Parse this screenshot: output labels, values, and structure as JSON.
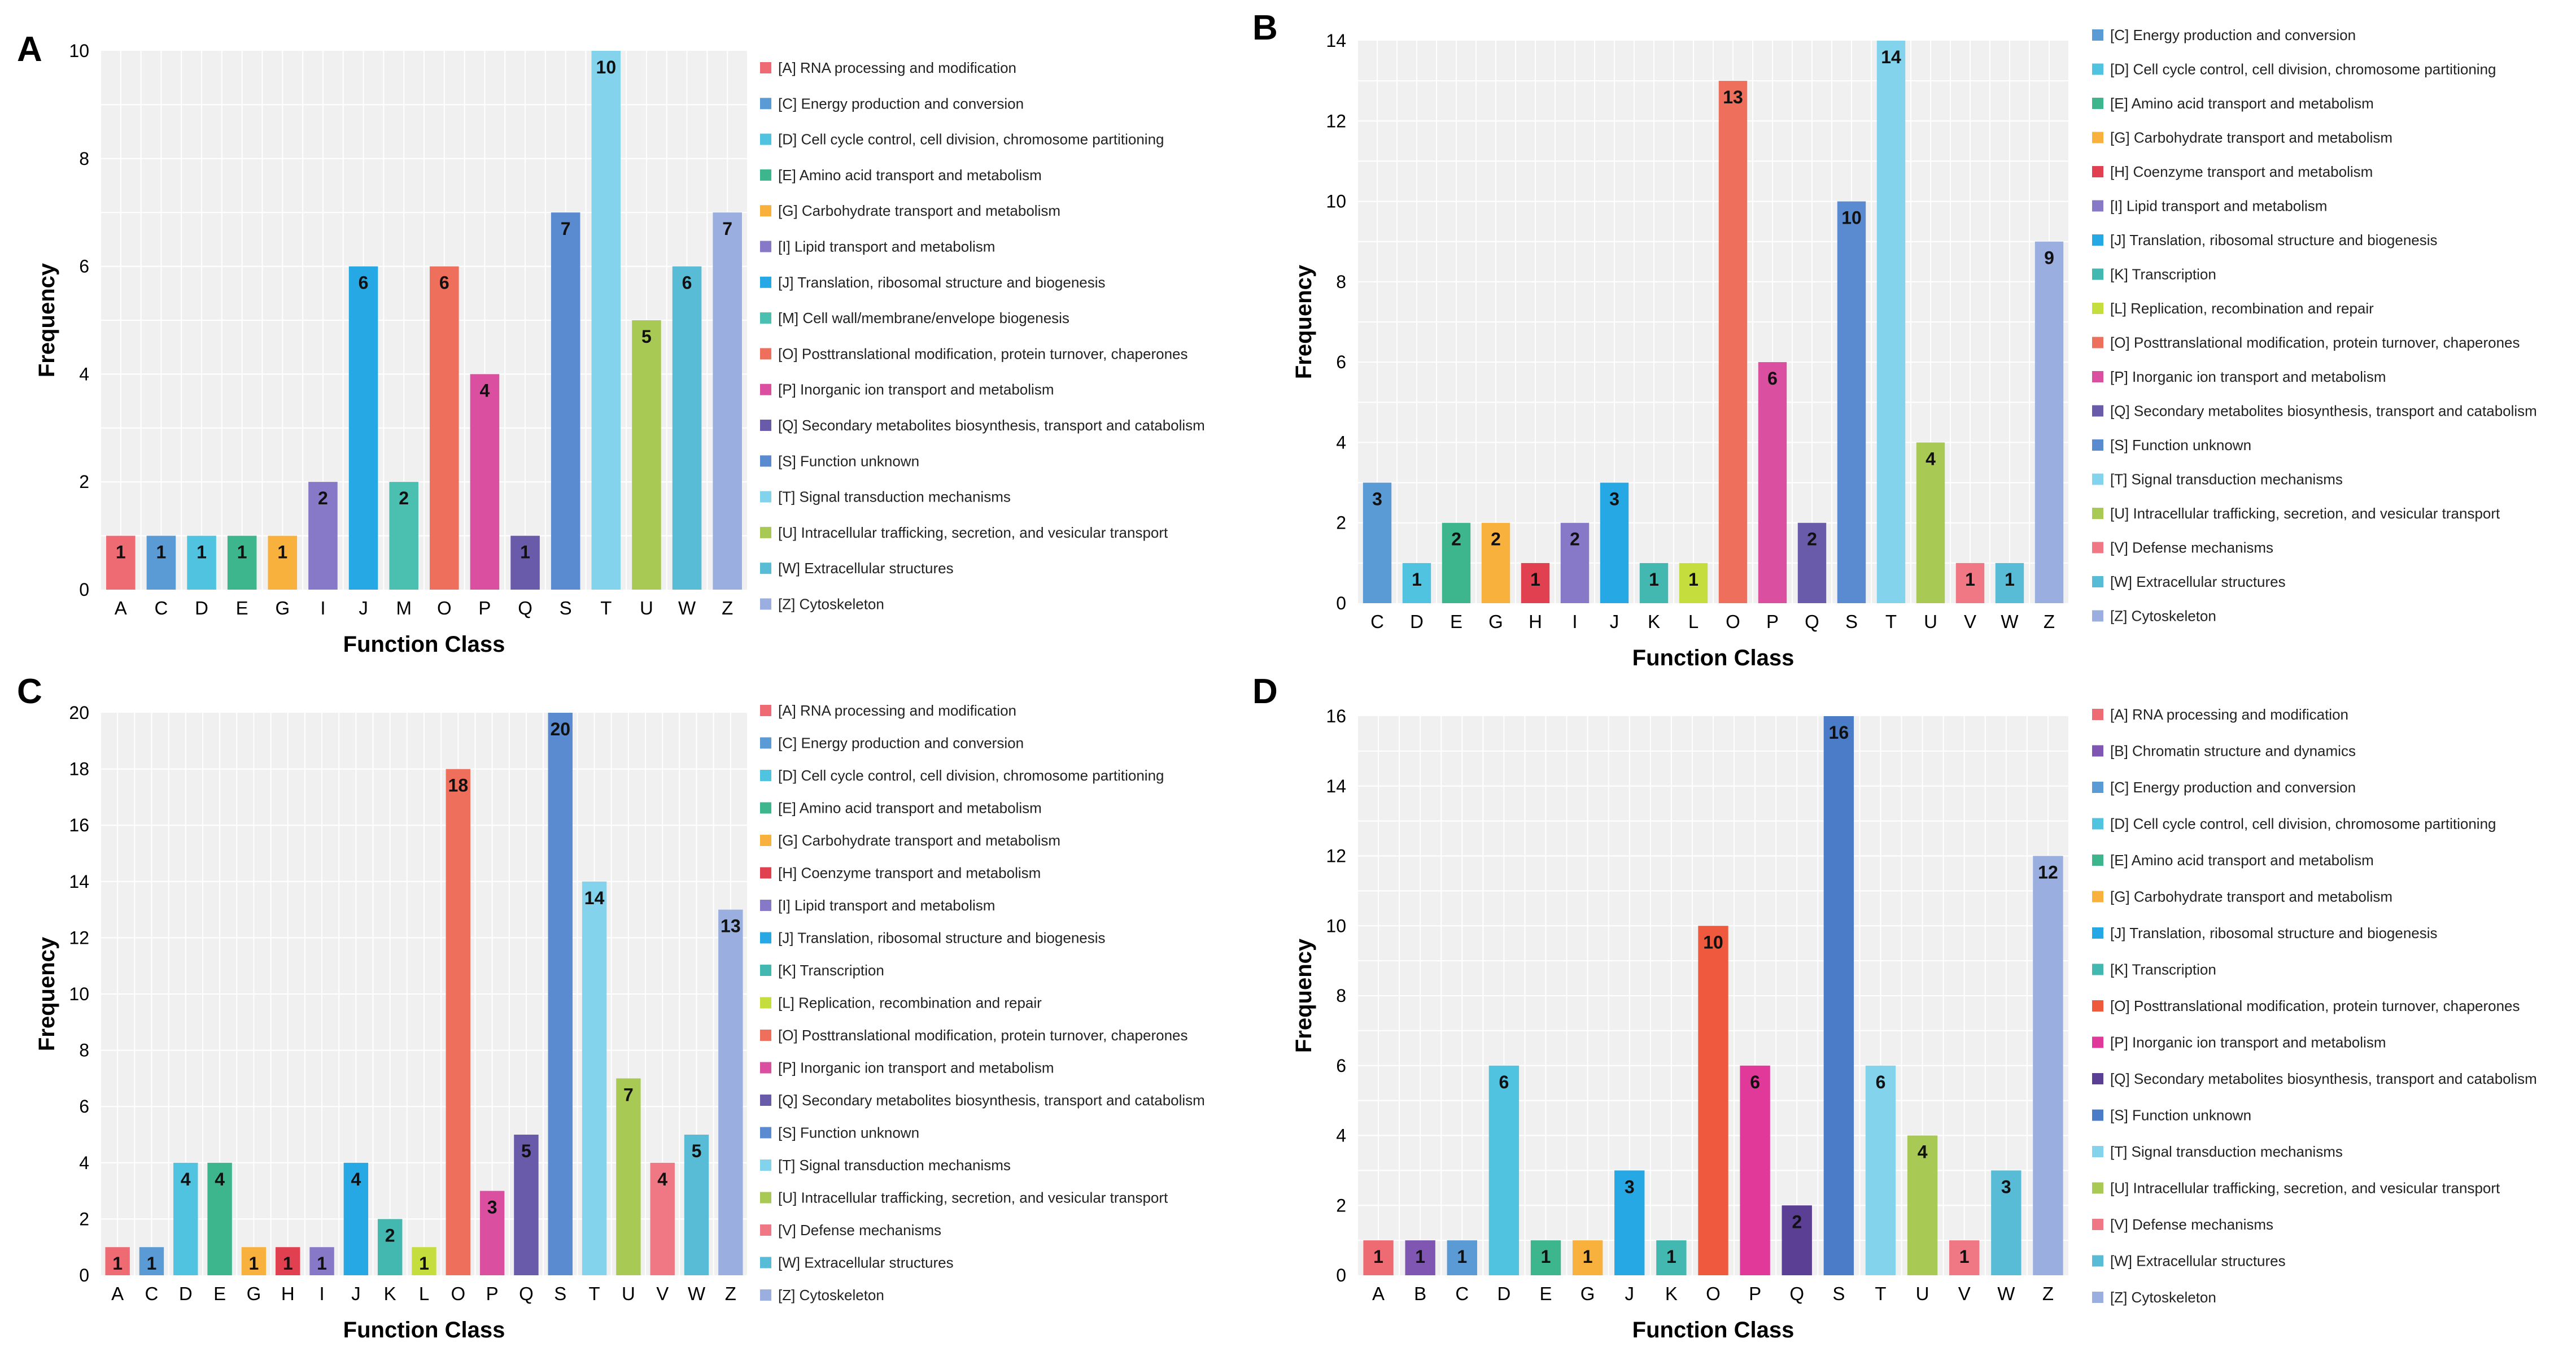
{
  "colors": {
    "A": "#ef6b73",
    "B": "#7f57b2",
    "C": "#5b9bd5",
    "D": "#4fc3e0",
    "E": "#3db68e",
    "G": "#f8b13c",
    "H": "#e04050",
    "I": "#8878c8",
    "J": "#25a8e4",
    "K": "#42b8b0",
    "L": "#c6dd3e",
    "M": "#4cc0b0",
    "O": "#ee6f5b",
    "P": "#da4fa0",
    "Q": "#6a5aaa",
    "S": "#5a8bd0",
    "T": "#84d3ec",
    "U": "#a9c955",
    "V": "#f07884",
    "W": "#58bcd6",
    "Z": "#9aaee0",
    "O_D": "#ef5a3e",
    "P_D": "#e0399a",
    "Q_D": "#5a3f95",
    "S_D": "#4a7cc8"
  },
  "chart_data": [
    {
      "panel": "A",
      "type": "bar",
      "xlabel": "Function Class",
      "ylabel": "Frequency",
      "ylim": [
        0,
        10
      ],
      "yticks": [
        "0",
        "2",
        "4",
        "6",
        "8",
        "10"
      ],
      "grid": true,
      "categories": [
        "A",
        "C",
        "D",
        "E",
        "G",
        "I",
        "J",
        "M",
        "O",
        "P",
        "Q",
        "S",
        "T",
        "U",
        "W",
        "Z"
      ],
      "values": [
        1,
        1,
        1,
        1,
        1,
        2,
        6,
        2,
        6,
        4,
        1,
        7,
        10,
        5,
        6,
        7
      ],
      "value_labels": [
        "1",
        "1",
        "1",
        "1",
        "1",
        "2",
        "6",
        "2",
        "6",
        "4",
        "1",
        "7",
        "10",
        "5",
        "6",
        "7"
      ],
      "legend": [
        "[A] RNA processing and modification",
        "[C] Energy production and conversion",
        "[D] Cell cycle control, cell division, chromosome partitioning",
        "[E] Amino acid transport and metabolism",
        "[G] Carbohydrate transport and metabolism",
        "[I] Lipid transport and metabolism",
        "[J] Translation, ribosomal structure and biogenesis",
        "[M] Cell wall/membrane/envelope biogenesis",
        "[O] Posttranslational modification, protein turnover, chaperones",
        "[P] Inorganic ion transport and metabolism",
        "[Q] Secondary metabolites biosynthesis, transport and catabolism",
        "[S] Function unknown",
        "[T] Signal transduction mechanisms",
        "[U] Intracellular trafficking, secretion, and vesicular transport",
        "[W] Extracellular structures",
        "[Z] Cytoskeleton"
      ],
      "legend_keys": [
        "A",
        "C",
        "D",
        "E",
        "G",
        "I",
        "J",
        "M",
        "O",
        "P",
        "Q",
        "S",
        "T",
        "U",
        "W",
        "Z"
      ]
    },
    {
      "panel": "B",
      "type": "bar",
      "xlabel": "Function Class",
      "ylabel": "Frequency",
      "ylim": [
        0,
        14
      ],
      "yticks": [
        "0",
        "2",
        "4",
        "6",
        "8",
        "10",
        "12",
        "14"
      ],
      "grid": true,
      "categories": [
        "C",
        "D",
        "E",
        "G",
        "H",
        "I",
        "J",
        "K",
        "L",
        "O",
        "P",
        "Q",
        "S",
        "T",
        "U",
        "V",
        "W",
        "Z"
      ],
      "values": [
        3,
        1,
        2,
        2,
        1,
        2,
        3,
        1,
        1,
        13,
        6,
        2,
        10,
        14,
        4,
        1,
        1,
        9
      ],
      "value_labels": [
        "3",
        "1",
        "2",
        "2",
        "1",
        "2",
        "3",
        "1",
        "1",
        "13",
        "6",
        "2",
        "10",
        "14",
        "4",
        "1",
        "1",
        "9"
      ],
      "legend": [
        "[C] Energy production and conversion",
        "[D] Cell cycle control, cell division, chromosome partitioning",
        "[E] Amino acid transport and metabolism",
        "[G] Carbohydrate transport and metabolism",
        "[H] Coenzyme transport and metabolism",
        "[I] Lipid transport and metabolism",
        "[J] Translation, ribosomal structure and biogenesis",
        "[K] Transcription",
        "[L] Replication, recombination and repair",
        "[O] Posttranslational modification, protein turnover, chaperones",
        "[P] Inorganic ion transport and metabolism",
        "[Q] Secondary metabolites biosynthesis, transport and catabolism",
        "[S] Function unknown",
        "[T] Signal transduction mechanisms",
        "[U] Intracellular trafficking, secretion, and vesicular transport",
        "[V] Defense mechanisms",
        "[W] Extracellular structures",
        "[Z] Cytoskeleton"
      ],
      "legend_keys": [
        "C",
        "D",
        "E",
        "G",
        "H",
        "I",
        "J",
        "K",
        "L",
        "O",
        "P",
        "Q",
        "S",
        "T",
        "U",
        "V",
        "W",
        "Z"
      ]
    },
    {
      "panel": "C",
      "type": "bar",
      "xlabel": "Function Class",
      "ylabel": "Frequency",
      "ylim": [
        0,
        20
      ],
      "yticks": [
        "0",
        "2",
        "4",
        "6",
        "8",
        "10",
        "12",
        "14",
        "16",
        "18",
        "20"
      ],
      "grid": true,
      "categories": [
        "A",
        "C",
        "D",
        "E",
        "G",
        "H",
        "I",
        "J",
        "K",
        "L",
        "O",
        "P",
        "Q",
        "S",
        "T",
        "U",
        "V",
        "W",
        "Z"
      ],
      "values": [
        1,
        1,
        4,
        4,
        1,
        1,
        1,
        4,
        2,
        1,
        18,
        3,
        5,
        20,
        14,
        7,
        4,
        5,
        13
      ],
      "value_labels": [
        "1",
        "1",
        "4",
        "4",
        "1",
        "1",
        "1",
        "4",
        "2",
        "1",
        "18",
        "3",
        "5",
        "20",
        "14",
        "7",
        "4",
        "5",
        "13"
      ],
      "legend": [
        "[A] RNA processing and modification",
        "[C] Energy production and conversion",
        "[D] Cell cycle control, cell division, chromosome partitioning",
        "[E] Amino acid transport and metabolism",
        "[G] Carbohydrate transport and metabolism",
        "[H] Coenzyme transport and metabolism",
        "[I] Lipid transport and metabolism",
        "[J] Translation, ribosomal structure and biogenesis",
        "[K] Transcription",
        "[L] Replication, recombination and repair",
        "[O] Posttranslational modification, protein turnover, chaperones",
        "[P] Inorganic ion transport and metabolism",
        "[Q] Secondary metabolites biosynthesis, transport and catabolism",
        "[S] Function unknown",
        "[T] Signal transduction mechanisms",
        "[U] Intracellular trafficking, secretion, and vesicular transport",
        "[V] Defense mechanisms",
        "[W] Extracellular structures",
        "[Z] Cytoskeleton"
      ],
      "legend_keys": [
        "A",
        "C",
        "D",
        "E",
        "G",
        "H",
        "I",
        "J",
        "K",
        "L",
        "O",
        "P",
        "Q",
        "S",
        "T",
        "U",
        "V",
        "W",
        "Z"
      ]
    },
    {
      "panel": "D",
      "type": "bar",
      "xlabel": "Function Class",
      "ylabel": "Frequency",
      "ylim": [
        0,
        16
      ],
      "yticks": [
        "0",
        "2",
        "4",
        "6",
        "8",
        "10",
        "12",
        "14",
        "16"
      ],
      "grid": true,
      "categories": [
        "A",
        "B",
        "C",
        "D",
        "E",
        "G",
        "J",
        "K",
        "O",
        "P",
        "Q",
        "S",
        "T",
        "U",
        "V",
        "W",
        "Z"
      ],
      "values": [
        1,
        1,
        1,
        6,
        1,
        1,
        3,
        1,
        10,
        6,
        2,
        16,
        6,
        4,
        1,
        3,
        12
      ],
      "value_labels": [
        "1",
        "1",
        "1",
        "6",
        "1",
        "1",
        "3",
        "1",
        "10",
        "6",
        "2",
        "16",
        "6",
        "4",
        "1",
        "3",
        "12"
      ],
      "legend": [
        "[A] RNA processing and modification",
        "[B] Chromatin structure and dynamics",
        "[C] Energy production and conversion",
        "[D] Cell cycle control, cell division, chromosome partitioning",
        "[E] Amino acid transport and metabolism",
        "[G] Carbohydrate transport and metabolism",
        "[J] Translation, ribosomal structure and biogenesis",
        "[K] Transcription",
        "[O] Posttranslational modification, protein turnover, chaperones",
        "[P] Inorganic ion transport and metabolism",
        "[Q] Secondary metabolites biosynthesis, transport and catabolism",
        "[S] Function unknown",
        "[T] Signal transduction mechanisms",
        "[U] Intracellular trafficking, secretion, and vesicular transport",
        "[V] Defense mechanisms",
        "[W] Extracellular structures",
        "[Z] Cytoskeleton"
      ],
      "legend_keys": [
        "A",
        "B",
        "C",
        "D",
        "E",
        "G",
        "J",
        "K",
        "O_D",
        "P_D",
        "Q_D",
        "S_D",
        "T",
        "U",
        "V",
        "W",
        "Z"
      ]
    }
  ]
}
